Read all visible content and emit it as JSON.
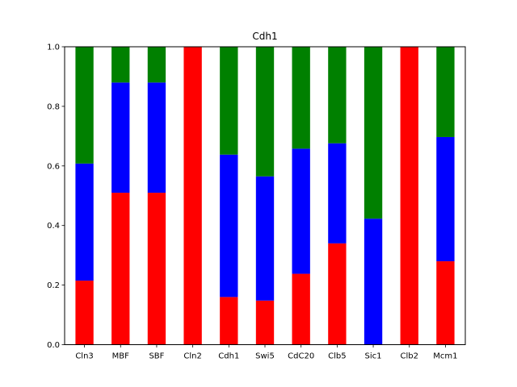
{
  "chart_data": {
    "type": "bar",
    "stacked": true,
    "title": "Cdh1",
    "xlabel": "",
    "ylabel": "",
    "ylim": [
      0,
      1.0
    ],
    "yticks": [
      "0.0",
      "0.2",
      "0.4",
      "0.6",
      "0.8",
      "1.0"
    ],
    "grid": false,
    "categories": [
      "Cln3",
      "MBF",
      "SBF",
      "Cln2",
      "Cdh1",
      "Swi5",
      "CdC20",
      "Clb5",
      "Sic1",
      "Clb2",
      "Mcm1"
    ],
    "series": [
      {
        "color": "#ff0000",
        "values": [
          0.215,
          0.51,
          0.51,
          1.0,
          0.16,
          0.148,
          0.238,
          0.34,
          0.0,
          1.0,
          0.28
        ]
      },
      {
        "color": "#0000ff",
        "values": [
          0.393,
          0.37,
          0.37,
          0.0,
          0.478,
          0.417,
          0.42,
          0.336,
          0.423,
          0.0,
          0.417
        ]
      },
      {
        "color": "#008000",
        "values": [
          0.392,
          0.12,
          0.12,
          0.0,
          0.362,
          0.435,
          0.342,
          0.324,
          0.577,
          0.0,
          0.303
        ]
      }
    ]
  }
}
